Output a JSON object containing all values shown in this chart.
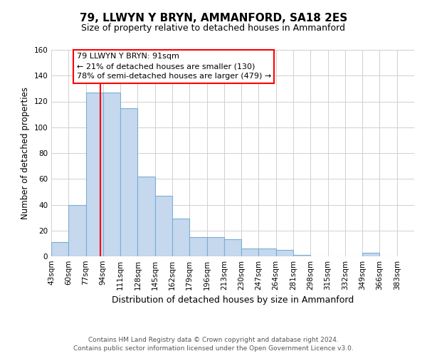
{
  "title": "79, LLWYN Y BRYN, AMMANFORD, SA18 2ES",
  "subtitle": "Size of property relative to detached houses in Ammanford",
  "xlabel": "Distribution of detached houses by size in Ammanford",
  "ylabel": "Number of detached properties",
  "bar_edges": [
    43,
    60,
    77,
    94,
    111,
    128,
    145,
    162,
    179,
    196,
    213,
    230,
    247,
    264,
    281,
    298,
    315,
    332,
    349,
    366,
    383
  ],
  "bar_heights": [
    11,
    40,
    127,
    127,
    115,
    62,
    47,
    29,
    15,
    15,
    13,
    6,
    6,
    5,
    1,
    0,
    0,
    0,
    3,
    0
  ],
  "bar_color": "#c5d8ed",
  "bar_edge_color": "#7bafd4",
  "vline_x": 91,
  "vline_color": "red",
  "ylim": [
    0,
    160
  ],
  "yticks": [
    0,
    20,
    40,
    60,
    80,
    100,
    120,
    140,
    160
  ],
  "annotation_title": "79 LLWYN Y BRYN: 91sqm",
  "annotation_line1": "← 21% of detached houses are smaller (130)",
  "annotation_line2": "78% of semi-detached houses are larger (479) →",
  "footer_line1": "Contains HM Land Registry data © Crown copyright and database right 2024.",
  "footer_line2": "Contains public sector information licensed under the Open Government Licence v3.0.",
  "title_fontsize": 11,
  "subtitle_fontsize": 9,
  "ylabel_fontsize": 8.5,
  "xlabel_fontsize": 9,
  "tick_fontsize": 7.5,
  "annotation_fontsize": 8,
  "footer_fontsize": 6.5
}
